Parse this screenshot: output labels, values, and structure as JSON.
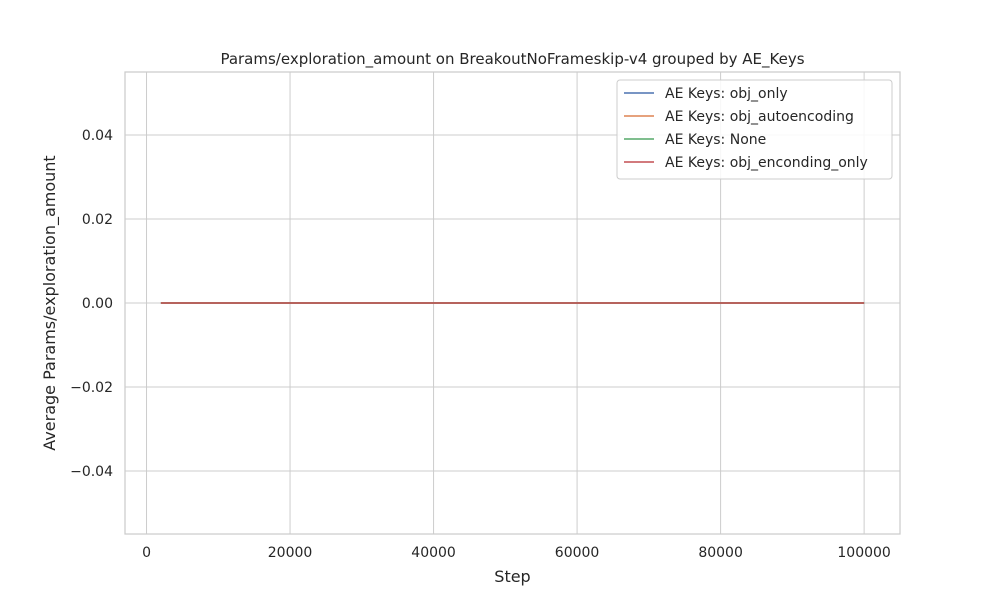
{
  "chart_data": {
    "type": "line",
    "title": "Params/exploration_amount on BreakoutNoFrameskip-v4 grouped by AE_Keys",
    "xlabel": "Step",
    "ylabel": "Average Params/exploration_amount",
    "xlim": [
      -3000,
      105000
    ],
    "ylim": [
      -0.055,
      0.055
    ],
    "xticks": [
      0,
      20000,
      40000,
      60000,
      80000,
      100000
    ],
    "xtick_labels": [
      "0",
      "20000",
      "40000",
      "60000",
      "80000",
      "100000"
    ],
    "yticks": [
      -0.04,
      -0.02,
      0.0,
      0.02,
      0.04
    ],
    "ytick_labels": [
      "−0.04",
      "−0.02",
      "0.00",
      "0.02",
      "0.04"
    ],
    "grid": true,
    "legend_position": "top-right",
    "series": [
      {
        "name": "AE Keys: obj_only",
        "color": "#4c72b0",
        "x": [
          2000,
          100000
        ],
        "y": [
          0.0,
          0.0
        ]
      },
      {
        "name": "AE Keys: obj_autoencoding",
        "color": "#dd8452",
        "x": [
          2000,
          100000
        ],
        "y": [
          0.0,
          0.0
        ]
      },
      {
        "name": "AE Keys: None",
        "color": "#55a868",
        "x": [
          2000,
          100000
        ],
        "y": [
          0.0,
          0.0
        ]
      },
      {
        "name": "AE Keys: obj_enconding_only",
        "color": "#c44e52",
        "x": [
          2000,
          100000
        ],
        "y": [
          0.0,
          0.0
        ]
      }
    ]
  }
}
